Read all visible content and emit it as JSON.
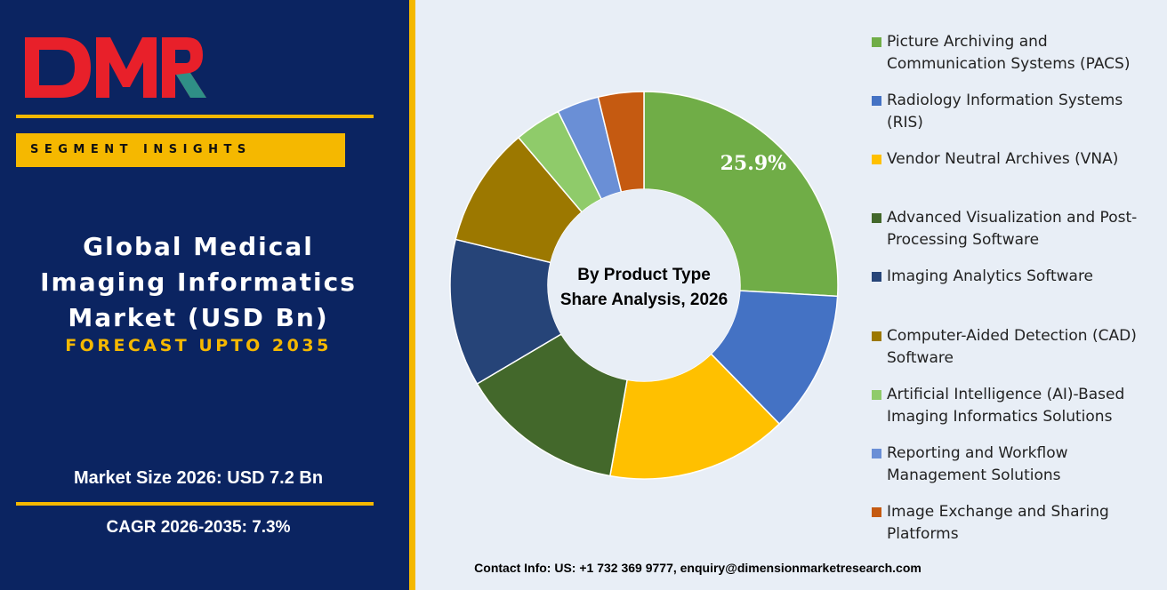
{
  "brand": {
    "logo_text": "DMR",
    "colors": {
      "navy": "#0b2461",
      "gold": "#f5b800",
      "logo_red": "#e8202a",
      "logo_teal": "#2f8f86"
    }
  },
  "sidebar": {
    "segment_label": "SEGMENT INSIGHTS",
    "title": "Global Medical\nImaging Informatics\nMarket (USD Bn)",
    "forecast": "FORECAST UPTO 2035",
    "market_size": "Market Size 2026: USD 7.2 Bn",
    "cagr": "CAGR 2026-2035: 7.3%"
  },
  "chart_data": {
    "type": "pie",
    "style": "donut",
    "title": "By Product Type\nShare Analysis, 2026",
    "unit": "%",
    "data_labels": [
      {
        "category": "Picture Archiving and Communication Systems (PACS)",
        "text": "25.9%"
      }
    ],
    "legend_position": "right",
    "categories": [
      "Picture Archiving and Communication Systems (PACS)",
      "Radiology Information Systems (RIS)",
      "Vendor Neutral Archives (VNA)",
      "Advanced Visualization and Post-Processing Software",
      "Imaging Analytics Software",
      "Computer-Aided Detection (CAD) Software",
      "Artificial Intelligence (AI)-Based Imaging Informatics Solutions",
      "Reporting and Workflow Management Solutions",
      "Image Exchange and Sharing Platforms"
    ],
    "values": [
      25.9,
      11.8,
      15.1,
      13.7,
      12.3,
      10.0,
      3.9,
      3.5,
      3.8
    ],
    "colors": [
      "#70ad47",
      "#4472c4",
      "#ffc000",
      "#43682b",
      "#264478",
      "#9c7800",
      "#8fcb6a",
      "#6a8fd6",
      "#c55a11"
    ],
    "legend_lines": [
      [
        "Picture Archiving and",
        "Communication Systems (PACS)"
      ],
      [
        "Radiology Information Systems",
        "(RIS)"
      ],
      [
        "Vendor Neutral Archives (VNA)"
      ],
      [
        "Advanced Visualization and Post-",
        "Processing Software"
      ],
      [
        "Imaging Analytics Software"
      ],
      [
        "Computer-Aided Detection (CAD)",
        "Software"
      ],
      [
        "Artificial Intelligence (AI)-Based",
        "Imaging Informatics Solutions"
      ],
      [
        "Reporting and Workflow",
        "Management Solutions"
      ],
      [
        "Image Exchange and Sharing",
        "Platforms"
      ]
    ]
  },
  "footer": {
    "contact": "Contact Info: US: +1 732 369 9777, enquiry@dimensionmarketresearch.com"
  }
}
